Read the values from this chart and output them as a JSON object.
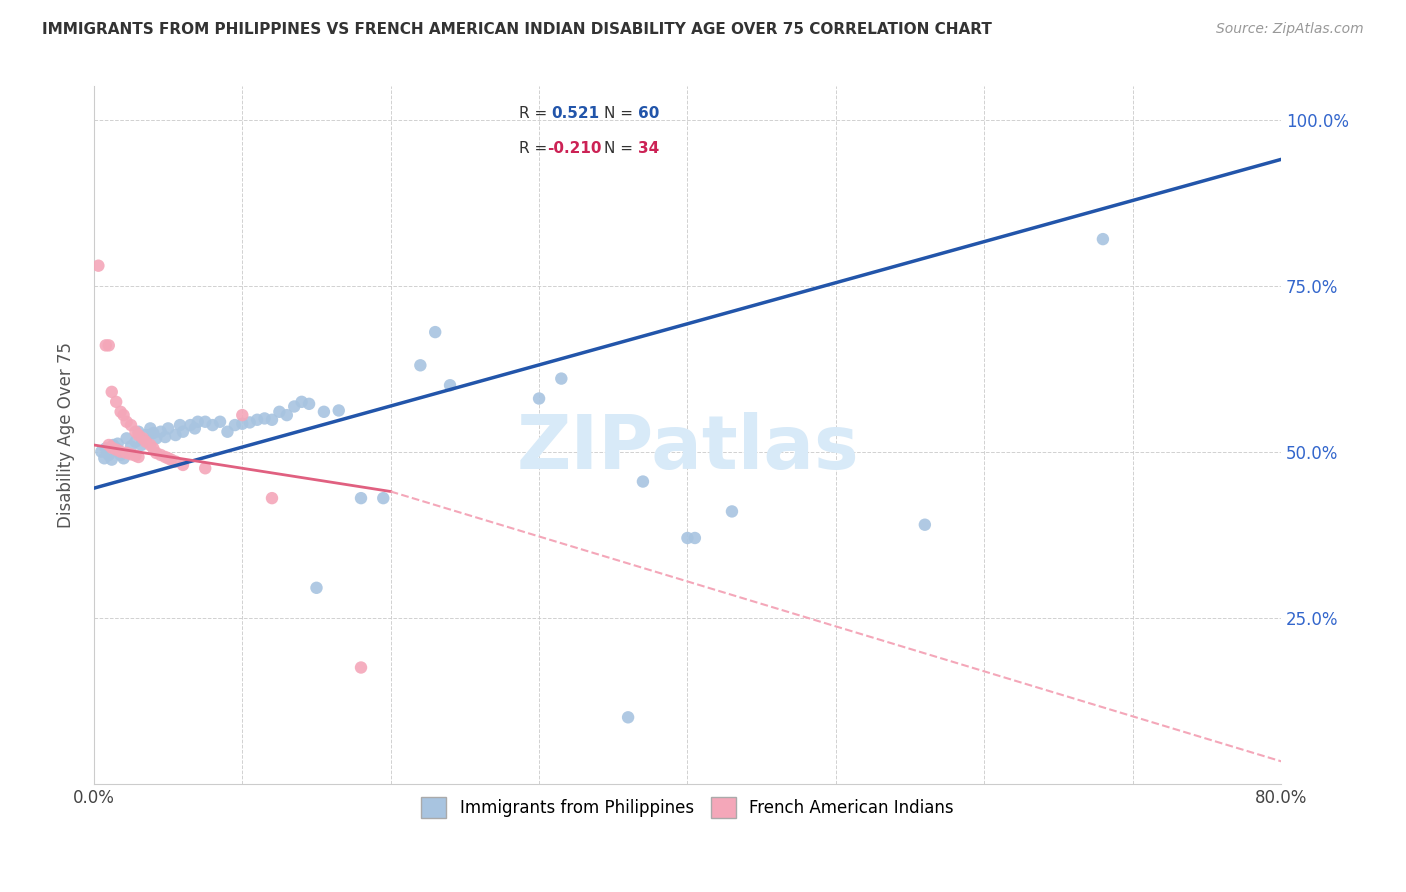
{
  "title": "IMMIGRANTS FROM PHILIPPINES VS FRENCH AMERICAN INDIAN DISABILITY AGE OVER 75 CORRELATION CHART",
  "source": "Source: ZipAtlas.com",
  "ylabel": "Disability Age Over 75",
  "xlim": [
    0.0,
    0.8
  ],
  "ylim": [
    0.0,
    1.05
  ],
  "watermark": "ZIPatlas",
  "blue_color": "#a8c4e0",
  "pink_color": "#f4a7b9",
  "blue_line_color": "#2255aa",
  "pink_solid_color": "#e06080",
  "pink_dash_color": "#f4a7b9",
  "blue_scatter": [
    [
      0.005,
      0.5
    ],
    [
      0.007,
      0.49
    ],
    [
      0.008,
      0.505
    ],
    [
      0.01,
      0.495
    ],
    [
      0.012,
      0.488
    ],
    [
      0.013,
      0.51
    ],
    [
      0.015,
      0.505
    ],
    [
      0.016,
      0.512
    ],
    [
      0.018,
      0.495
    ],
    [
      0.02,
      0.49
    ],
    [
      0.022,
      0.52
    ],
    [
      0.025,
      0.508
    ],
    [
      0.028,
      0.515
    ],
    [
      0.03,
      0.53
    ],
    [
      0.032,
      0.51
    ],
    [
      0.035,
      0.525
    ],
    [
      0.038,
      0.535
    ],
    [
      0.04,
      0.528
    ],
    [
      0.042,
      0.52
    ],
    [
      0.045,
      0.53
    ],
    [
      0.048,
      0.522
    ],
    [
      0.05,
      0.535
    ],
    [
      0.055,
      0.525
    ],
    [
      0.058,
      0.54
    ],
    [
      0.06,
      0.53
    ],
    [
      0.065,
      0.54
    ],
    [
      0.068,
      0.535
    ],
    [
      0.07,
      0.545
    ],
    [
      0.075,
      0.545
    ],
    [
      0.08,
      0.54
    ],
    [
      0.085,
      0.545
    ],
    [
      0.09,
      0.53
    ],
    [
      0.095,
      0.54
    ],
    [
      0.1,
      0.542
    ],
    [
      0.105,
      0.544
    ],
    [
      0.11,
      0.548
    ],
    [
      0.115,
      0.55
    ],
    [
      0.12,
      0.548
    ],
    [
      0.125,
      0.56
    ],
    [
      0.13,
      0.555
    ],
    [
      0.135,
      0.568
    ],
    [
      0.14,
      0.575
    ],
    [
      0.145,
      0.572
    ],
    [
      0.155,
      0.56
    ],
    [
      0.165,
      0.562
    ],
    [
      0.18,
      0.43
    ],
    [
      0.195,
      0.43
    ],
    [
      0.22,
      0.63
    ],
    [
      0.23,
      0.68
    ],
    [
      0.24,
      0.6
    ],
    [
      0.3,
      0.58
    ],
    [
      0.315,
      0.61
    ],
    [
      0.37,
      0.455
    ],
    [
      0.4,
      0.37
    ],
    [
      0.405,
      0.37
    ],
    [
      0.43,
      0.41
    ],
    [
      0.56,
      0.39
    ],
    [
      0.68,
      0.82
    ],
    [
      0.36,
      0.1
    ],
    [
      0.15,
      0.295
    ]
  ],
  "pink_scatter": [
    [
      0.003,
      0.78
    ],
    [
      0.008,
      0.66
    ],
    [
      0.01,
      0.66
    ],
    [
      0.012,
      0.59
    ],
    [
      0.015,
      0.575
    ],
    [
      0.018,
      0.56
    ],
    [
      0.02,
      0.555
    ],
    [
      0.022,
      0.545
    ],
    [
      0.025,
      0.54
    ],
    [
      0.028,
      0.53
    ],
    [
      0.03,
      0.525
    ],
    [
      0.033,
      0.52
    ],
    [
      0.035,
      0.515
    ],
    [
      0.038,
      0.51
    ],
    [
      0.04,
      0.505
    ],
    [
      0.042,
      0.498
    ],
    [
      0.045,
      0.495
    ],
    [
      0.048,
      0.492
    ],
    [
      0.05,
      0.49
    ],
    [
      0.052,
      0.488
    ],
    [
      0.055,
      0.485
    ],
    [
      0.06,
      0.48
    ],
    [
      0.01,
      0.51
    ],
    [
      0.012,
      0.506
    ],
    [
      0.015,
      0.503
    ],
    [
      0.018,
      0.5
    ],
    [
      0.022,
      0.498
    ],
    [
      0.025,
      0.496
    ],
    [
      0.028,
      0.494
    ],
    [
      0.03,
      0.492
    ],
    [
      0.075,
      0.475
    ],
    [
      0.1,
      0.555
    ],
    [
      0.12,
      0.43
    ],
    [
      0.18,
      0.175
    ]
  ],
  "blue_line": [
    [
      0.0,
      0.445
    ],
    [
      0.8,
      0.94
    ]
  ],
  "pink_solid_line": [
    [
      0.0,
      0.51
    ],
    [
      0.2,
      0.44
    ]
  ],
  "pink_dash_line": [
    [
      0.2,
      0.44
    ],
    [
      0.85,
      0.0
    ]
  ]
}
